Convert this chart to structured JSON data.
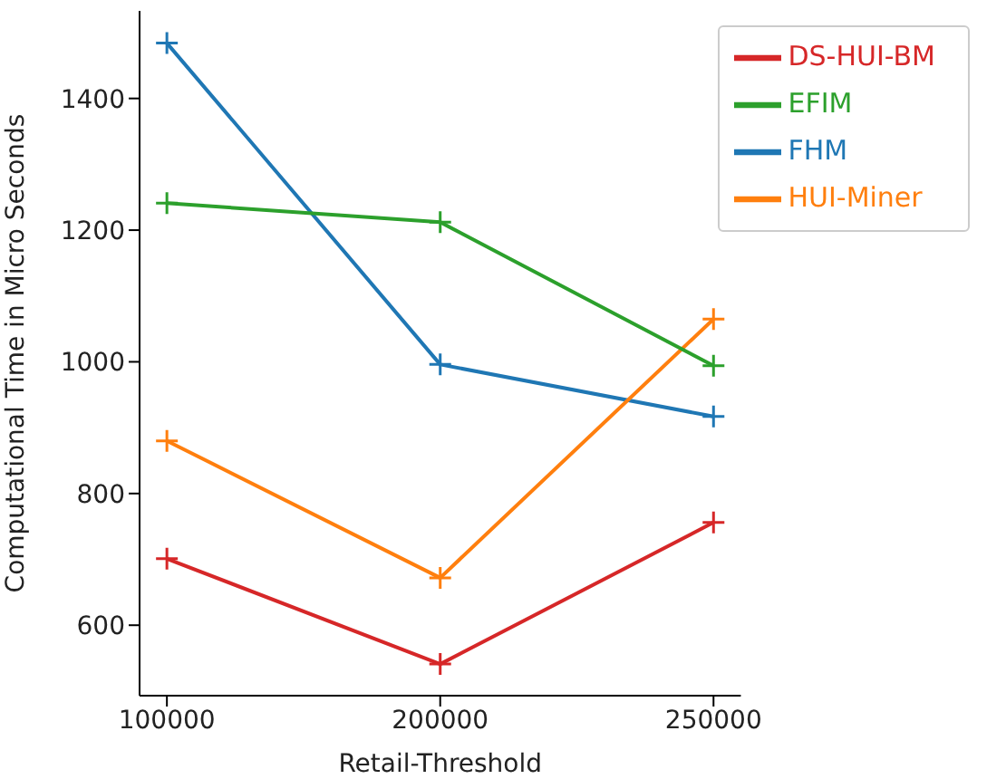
{
  "chart_data": {
    "type": "line",
    "xlabel": "Retail-Threshold",
    "ylabel": "Computational Time in Micro Seconds",
    "categories": [
      "100000",
      "200000",
      "250000"
    ],
    "ylim": [
      493,
      1533
    ],
    "yticks": [
      600,
      800,
      1000,
      1200,
      1400
    ],
    "grid": false,
    "legend": "top right",
    "marker": "cross",
    "line_style": "solid",
    "series": [
      {
        "name": "FHM",
        "color": "#1f77b4",
        "values": [
          1484,
          996,
          917
        ]
      },
      {
        "name": "HUI-Miner",
        "color": "#ff7f0e",
        "values": [
          880,
          672,
          1065
        ]
      },
      {
        "name": "EFIM",
        "color": "#2ca02c",
        "values": [
          1241,
          1212,
          994
        ]
      },
      {
        "name": "DS-HUI-BM",
        "color": "#d62728",
        "values": [
          701,
          541,
          756
        ]
      }
    ]
  }
}
